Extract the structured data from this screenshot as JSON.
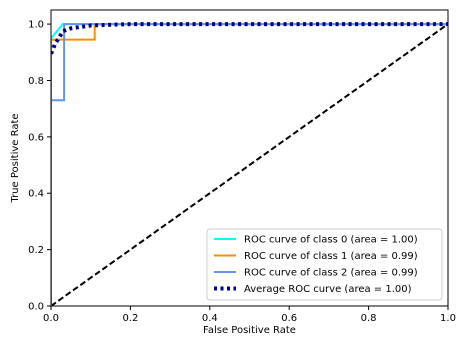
{
  "chart_data": {
    "type": "line",
    "title": "",
    "xlabel": "False Positive Rate",
    "ylabel": "True Positive Rate",
    "xlim": [
      0.0,
      1.0
    ],
    "ylim": [
      0.0,
      1.05
    ],
    "xticks": [
      "0.0",
      "0.2",
      "0.4",
      "0.6",
      "0.8",
      "1.0"
    ],
    "yticks": [
      "0.0",
      "0.2",
      "0.4",
      "0.6",
      "0.8",
      "1.0"
    ],
    "grid": false,
    "legend_position": "lower-right",
    "series": [
      {
        "name": "ROC curve of class 0 (area = 1.00)",
        "color": "#00ffff",
        "style": "solid",
        "x": [
          0.0,
          0.0,
          0.0,
          0.03,
          1.0
        ],
        "y": [
          0.0,
          0.78,
          0.95,
          1.0,
          1.0
        ]
      },
      {
        "name": "ROC curve of class 1 (area = 0.99)",
        "color": "#ff8c00",
        "style": "solid",
        "x": [
          0.0,
          0.0,
          0.0,
          0.11,
          0.11,
          1.0
        ],
        "y": [
          0.0,
          0.73,
          0.945,
          0.945,
          1.0,
          1.0
        ]
      },
      {
        "name": "ROC curve of class 2 (area = 0.99)",
        "color": "#6495ed",
        "style": "solid",
        "x": [
          0.0,
          0.0,
          0.033,
          0.033,
          1.0
        ],
        "y": [
          0.0,
          0.73,
          0.73,
          1.0,
          1.0
        ]
      },
      {
        "name": "Average ROC curve (area = 1.00)",
        "color": "#000080",
        "style": "dotted",
        "x": [
          0.0,
          0.005,
          0.01,
          0.02,
          0.03,
          0.05,
          0.1,
          0.2,
          0.4,
          0.6,
          0.8,
          1.0
        ],
        "y": [
          0.895,
          0.91,
          0.93,
          0.95,
          0.975,
          0.985,
          0.995,
          1.0,
          1.0,
          1.0,
          1.0,
          1.0
        ]
      }
    ],
    "reference_line": {
      "color": "#000000",
      "style": "dashed",
      "x": [
        0.0,
        1.0
      ],
      "y": [
        0.0,
        1.0
      ]
    }
  }
}
